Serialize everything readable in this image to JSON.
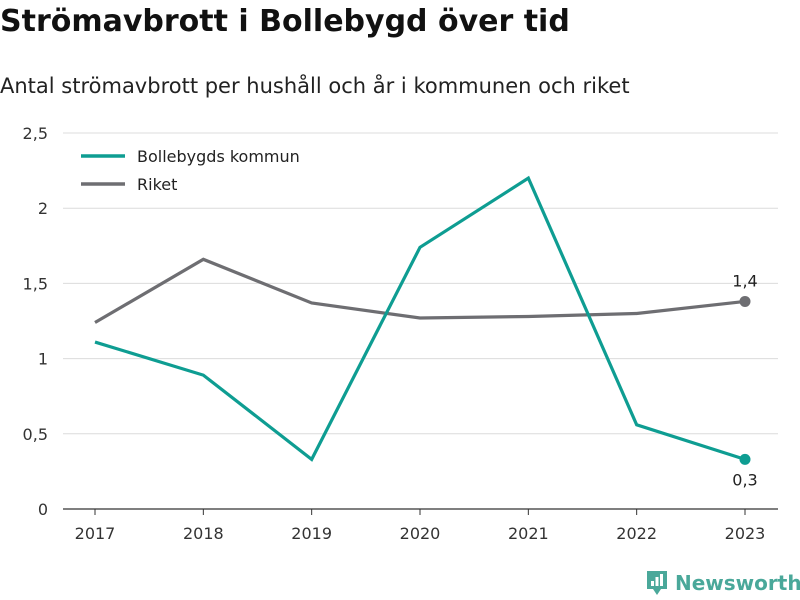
{
  "title": "Strömavbrott i Bollebygd över tid",
  "subtitle": "Antal strömavbrott per hushåll och år i kommunen och riket",
  "brand": {
    "name": "Newsworthy",
    "icon": "newsworthy-logo-icon",
    "color": "#4aa89a"
  },
  "colors": {
    "kommun": "#0e9d92",
    "riket": "#6e6e72",
    "grid": "#dcdcdc",
    "axis": "#333333"
  },
  "chart_data": {
    "type": "line",
    "categories": [
      "2017",
      "2018",
      "2019",
      "2020",
      "2021",
      "2022",
      "2023"
    ],
    "series": [
      {
        "name": "Bollebygds kommun",
        "color": "#0e9d92",
        "values": [
          1.11,
          0.89,
          0.33,
          1.74,
          2.2,
          0.56,
          0.33
        ]
      },
      {
        "name": "Riket",
        "color": "#6e6e72",
        "values": [
          1.24,
          1.66,
          1.37,
          1.27,
          1.28,
          1.3,
          1.38
        ]
      }
    ],
    "yticks": [
      "0",
      "0,5",
      "1",
      "1,5",
      "2",
      "2,5"
    ],
    "ylim": [
      0,
      2.5
    ],
    "grid": true,
    "legend": "top-left",
    "end_labels": [
      {
        "series": "Riket",
        "text": "1,4",
        "position": "above"
      },
      {
        "series": "Bollebygds kommun",
        "text": "0,3",
        "position": "below"
      }
    ]
  }
}
